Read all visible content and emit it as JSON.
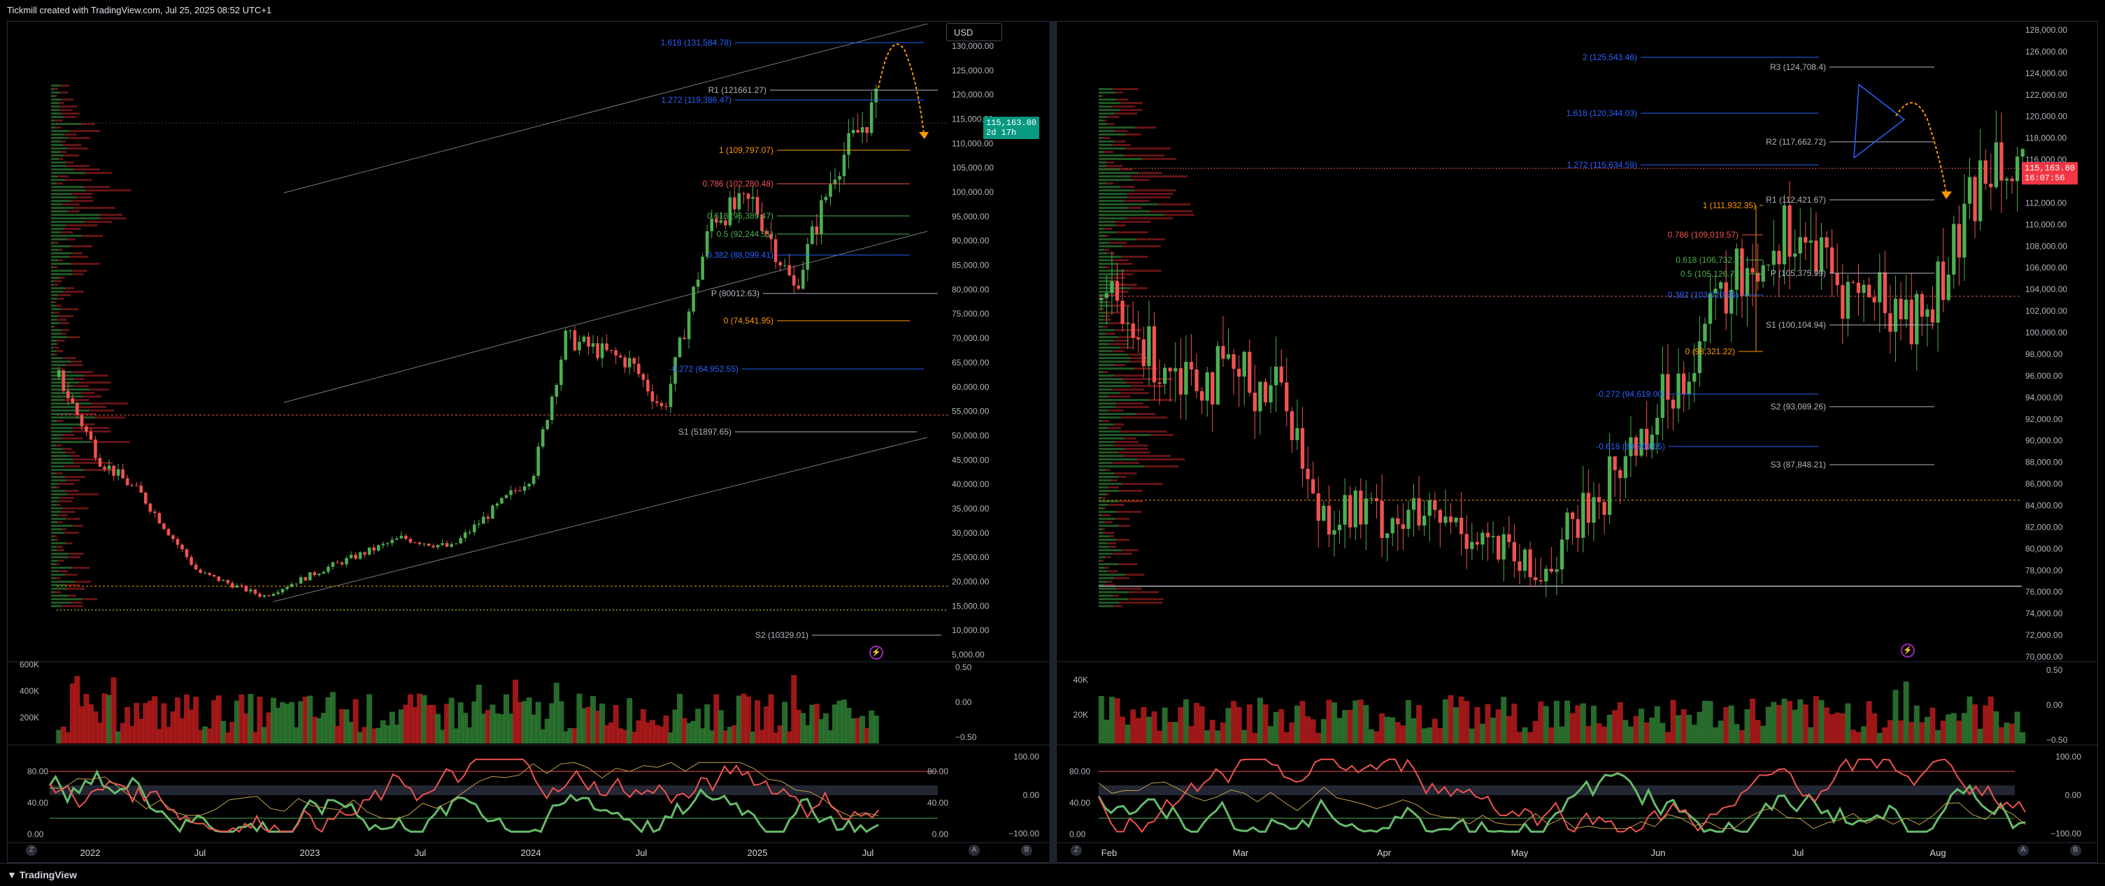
{
  "header": {
    "attribution": "Tickmill created with TradingView.com, Jul 25, 2025 08:52 UTC+1"
  },
  "footer": {
    "brand": "TradingView"
  },
  "colors": {
    "up": "#4caf50",
    "down": "#ef5350",
    "fib_blue": "#2962ff",
    "fib_orange": "#ff9800",
    "grid": "#1a1d26",
    "text": "#b2b5be"
  },
  "left_chart": {
    "currency_button": "USD",
    "price_label": "115,163.80",
    "countdown_label": "2d 17h",
    "y_ticks": [
      "130,000.00",
      "125,000.00",
      "120,000.00",
      "115,000.00",
      "110,000.00",
      "105,000.00",
      "100,000.00",
      "95,000.00",
      "90,000.00",
      "85,000.00",
      "80,000.00",
      "75,000.00",
      "70,000.00",
      "65,000.00",
      "60,000.00",
      "55,000.00",
      "50,000.00",
      "45,000.00",
      "40,000.00",
      "35,000.00",
      "30,000.00",
      "25,000.00",
      "20,000.00",
      "15,000.00",
      "10,000.00",
      "5,000.00"
    ],
    "x_ticks": [
      "2022",
      "Jul",
      "2023",
      "Jul",
      "2024",
      "Jul",
      "2025",
      "Jul"
    ],
    "volume_ticks": [
      "600K",
      "400K",
      "200K"
    ],
    "osc1_ticks": [
      "0.50",
      "0.00",
      "−0.50"
    ],
    "osc2_ticks_right": [
      "100.00",
      "0.00",
      "−100.00"
    ],
    "osc2_ticks_left": [
      "80.00",
      "40.00",
      "0.00"
    ],
    "osc2_ticks_mid": [
      "80.00",
      "40.00",
      "0.00"
    ],
    "levels": [
      {
        "label": "1.618 (131,584.78)",
        "color": "#2962ff"
      },
      {
        "label": "R1 (121661.27)",
        "color": "#b2b5be"
      },
      {
        "label": "1.272 (119,386.47)",
        "color": "#2962ff"
      },
      {
        "label": "1 (109,797.07)",
        "color": "#ff9800"
      },
      {
        "label": "0.786 (102,280.48)",
        "color": "#ef5350"
      },
      {
        "label": "0.618 (96,389.47)",
        "color": "#4caf50"
      },
      {
        "label": "0.5 (92,244.51)",
        "color": "#4caf50"
      },
      {
        "label": "0.382 (88,099.41)",
        "color": "#2962ff"
      },
      {
        "label": "P (80012.63)",
        "color": "#b2b5be"
      },
      {
        "label": "0 (74,541.95)",
        "color": "#ff9800"
      },
      {
        "label": "-0.272 (64,952.55)",
        "color": "#2962ff"
      },
      {
        "label": "S1 (51897.65)",
        "color": "#b2b5be"
      },
      {
        "label": "S2 (10329.01)",
        "color": "#b2b5be"
      }
    ]
  },
  "right_chart": {
    "price_label": "115,163.80",
    "countdown_label": "16:07:56",
    "y_ticks": [
      "128,000.00",
      "126,000.00",
      "124,000.00",
      "122,000.00",
      "120,000.00",
      "118,000.00",
      "116,000.00",
      "114,000.00",
      "112,000.00",
      "110,000.00",
      "108,000.00",
      "106,000.00",
      "104,000.00",
      "102,000.00",
      "100,000.00",
      "98,000.00",
      "96,000.00",
      "94,000.00",
      "92,000.00",
      "90,000.00",
      "88,000.00",
      "86,000.00",
      "84,000.00",
      "82,000.00",
      "80,000.00",
      "78,000.00",
      "76,000.00",
      "74,000.00",
      "72,000.00",
      "70,000.00"
    ],
    "x_ticks": [
      "Feb",
      "Mar",
      "Apr",
      "May",
      "Jun",
      "Jul",
      "Aug"
    ],
    "volume_ticks": [
      "40K",
      "20K"
    ],
    "osc1_ticks": [
      "0.50",
      "0.00",
      "−0.50"
    ],
    "osc2_ticks_right": [
      "100.00",
      "0.00",
      "−100.00"
    ],
    "osc2_ticks_left": [
      "80.00",
      "40.00",
      "0.00"
    ],
    "levels": [
      {
        "label": "2 (125,543.46)",
        "color": "#2962ff"
      },
      {
        "label": "R3 (124,708.4)",
        "color": "#b2b5be"
      },
      {
        "label": "1.618 (120,344.03)",
        "color": "#2962ff"
      },
      {
        "label": "R2 (117,662.72)",
        "color": "#b2b5be"
      },
      {
        "label": "1.272 (115,634.59)",
        "color": "#2962ff"
      },
      {
        "label": "R1 (112,421.67)",
        "color": "#b2b5be"
      },
      {
        "label": "1 (111,932.35)",
        "color": "#ff9800"
      },
      {
        "label": "0.786 (109,019.57)",
        "color": "#ef5350"
      },
      {
        "label": "0.618 (106,732.7)",
        "color": "#4caf50"
      },
      {
        "label": "0.5 (105,126.78)",
        "color": "#4caf50"
      },
      {
        "label": "P (105,375.99)",
        "color": "#b2b5be"
      },
      {
        "label": "0.382 (103,520.86)",
        "color": "#2962ff"
      },
      {
        "label": "S1 (100,104.94)",
        "color": "#b2b5be"
      },
      {
        "label": "0 (98,321.22)",
        "color": "#ff9800"
      },
      {
        "label": "-0.272 (94,619.00)",
        "color": "#2962ff"
      },
      {
        "label": "S2 (93,089.26)",
        "color": "#b2b5be"
      },
      {
        "label": "-0.618 (89,909.65)",
        "color": "#2962ff"
      },
      {
        "label": "S3 (87,848.21)",
        "color": "#b2b5be"
      }
    ]
  }
}
